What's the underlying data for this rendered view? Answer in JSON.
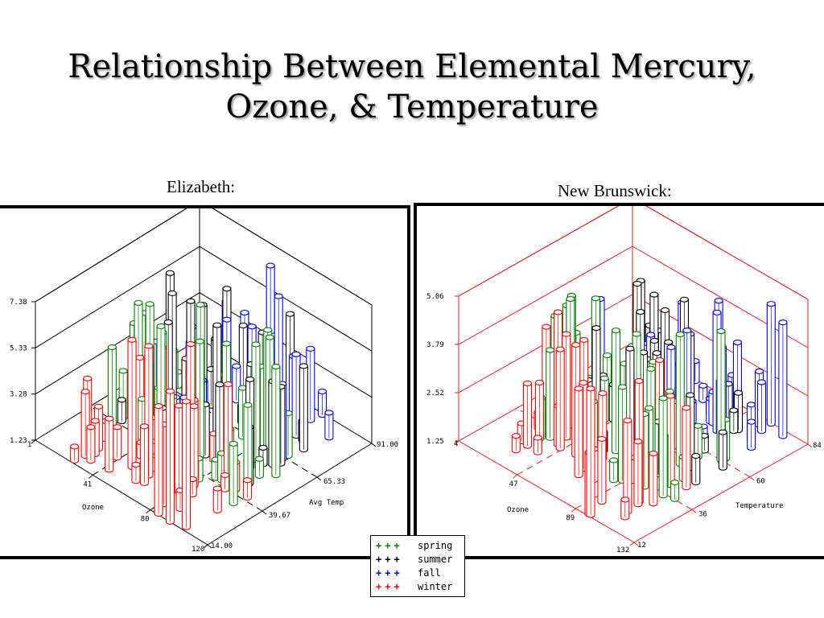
{
  "slide": {
    "title_line1": "Relationship Between Elemental Mercury,",
    "title_line2": "Ozone, & Temperature"
  },
  "left_panel": {
    "label": "Elizabeth:",
    "z_ticks": [
      "7.38",
      "5.33",
      "3.28",
      "1.23"
    ],
    "ozone_ticks": [
      "1",
      "41",
      "80",
      "120"
    ],
    "ozone_label": "Ozone",
    "temp_ticks": [
      "14.00",
      "39.67",
      "65.33",
      "91.00"
    ],
    "temp_label": "Avg Temp",
    "frame_color": "#000000"
  },
  "right_panel": {
    "label": "New Brunswick:",
    "z_ticks": [
      "5.06",
      "3.79",
      "2.52",
      "1.25"
    ],
    "ozone_ticks": [
      "4",
      "47",
      "89",
      "132"
    ],
    "ozone_label": "Ozone",
    "temp_ticks": [
      "12",
      "36",
      "60",
      "84"
    ],
    "temp_label": "Temperature",
    "frame_color": "#e02020"
  },
  "legend": {
    "items": [
      {
        "label": "spring",
        "color": "#008000"
      },
      {
        "label": "summer",
        "color": "#000000"
      },
      {
        "label": "fall",
        "color": "#0000ff"
      },
      {
        "label": "winter",
        "color": "#ff0000"
      }
    ]
  }
}
